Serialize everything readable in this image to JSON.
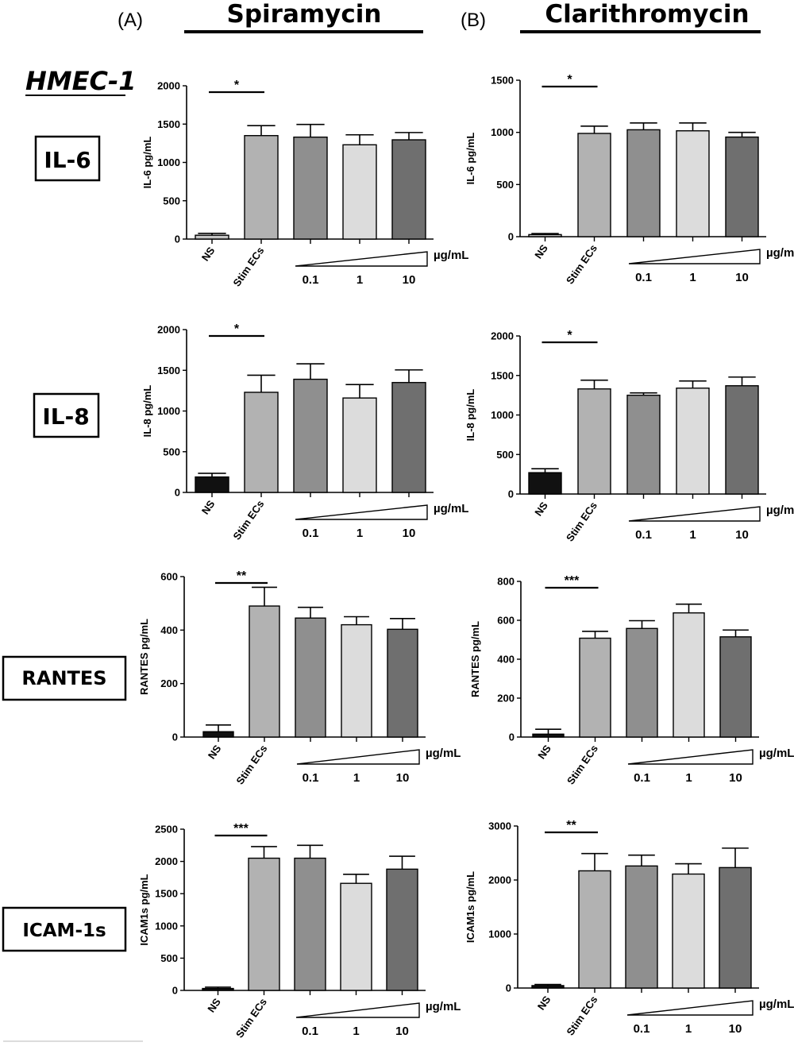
{
  "figure": {
    "panel_a_label": "(A)",
    "panel_b_label": "(B)",
    "panel_a_drug": "Spiramycin",
    "panel_b_drug": "Clarithromycin",
    "cell_line": "HMEC-1",
    "row_labels": [
      "IL-6",
      "IL-8",
      "RANTES",
      "ICAM-1s"
    ],
    "categories": [
      "NS",
      "Stim ECs"
    ],
    "dose_unit": "µg/mL",
    "dose_labels": [
      "0.1",
      "1",
      "10"
    ]
  },
  "colors": {
    "bars": [
      "#c4c4c4",
      "#b2b2b2",
      "#8f8f8f",
      "#dcdcdc",
      "#6f6f6f"
    ],
    "ns_black": "#111111",
    "axis": "#000000"
  },
  "chart_data": [
    {
      "type": "bar",
      "panel": "A",
      "marker": "IL-6",
      "ylabel": "IL-6 pg/mL",
      "ylim": [
        0,
        2000
      ],
      "yticks": [
        0,
        500,
        1000,
        1500,
        2000
      ],
      "values": [
        50,
        1350,
        1330,
        1230,
        1295
      ],
      "errors": [
        25,
        130,
        165,
        130,
        95
      ],
      "ns_color": "light",
      "sig": "*"
    },
    {
      "type": "bar",
      "panel": "B",
      "marker": "IL-6",
      "ylabel": "IL-6 pg/mL",
      "ylim": [
        0,
        1500
      ],
      "yticks": [
        0,
        500,
        1000,
        1500
      ],
      "values": [
        20,
        990,
        1025,
        1015,
        955
      ],
      "errors": [
        10,
        70,
        65,
        75,
        45
      ],
      "ns_color": "light",
      "sig": "*"
    },
    {
      "type": "bar",
      "panel": "A",
      "marker": "IL-8",
      "ylabel": "IL-8 pg/mL",
      "ylim": [
        0,
        2000
      ],
      "yticks": [
        0,
        500,
        1000,
        1500,
        2000
      ],
      "values": [
        190,
        1230,
        1390,
        1160,
        1350
      ],
      "errors": [
        45,
        210,
        190,
        165,
        155
      ],
      "ns_color": "black",
      "sig": "*"
    },
    {
      "type": "bar",
      "panel": "B",
      "marker": "IL-8",
      "ylabel": "IL-8 pg/mL",
      "ylim": [
        0,
        2000
      ],
      "yticks": [
        0,
        500,
        1000,
        1500,
        2000
      ],
      "values": [
        270,
        1330,
        1250,
        1340,
        1370
      ],
      "errors": [
        50,
        110,
        30,
        90,
        110
      ],
      "ns_color": "black",
      "sig": "*"
    },
    {
      "type": "bar",
      "panel": "A",
      "marker": "RANTES",
      "ylabel": "RANTES pg/mL",
      "ylim": [
        0,
        600
      ],
      "yticks": [
        0,
        200,
        400,
        600
      ],
      "values": [
        20,
        490,
        445,
        420,
        403
      ],
      "errors": [
        25,
        70,
        40,
        30,
        40
      ],
      "ns_color": "black",
      "sig": "**"
    },
    {
      "type": "bar",
      "panel": "B",
      "marker": "RANTES",
      "ylabel": "RANTES pg/mL",
      "ylim": [
        0,
        800
      ],
      "yticks": [
        0,
        200,
        400,
        600,
        800
      ],
      "values": [
        15,
        508,
        558,
        638,
        515
      ],
      "errors": [
        25,
        35,
        40,
        45,
        35
      ],
      "ns_color": "black",
      "sig": "***"
    },
    {
      "type": "bar",
      "panel": "A",
      "marker": "ICAM-1s",
      "ylabel": "ICAM1s pg/mL",
      "ylim": [
        0,
        2500
      ],
      "yticks": [
        0,
        500,
        1000,
        1500,
        2000,
        2500
      ],
      "values": [
        30,
        2050,
        2050,
        1660,
        1880
      ],
      "errors": [
        20,
        180,
        200,
        140,
        200
      ],
      "ns_color": "black",
      "sig": "***"
    },
    {
      "type": "bar",
      "panel": "B",
      "marker": "ICAM-1s",
      "ylabel": "ICAM1s pg/mL",
      "ylim": [
        0,
        3000
      ],
      "yticks": [
        0,
        1000,
        2000,
        3000
      ],
      "values": [
        45,
        2170,
        2260,
        2110,
        2230
      ],
      "errors": [
        20,
        320,
        200,
        190,
        360
      ],
      "ns_color": "black",
      "sig": "**"
    }
  ]
}
